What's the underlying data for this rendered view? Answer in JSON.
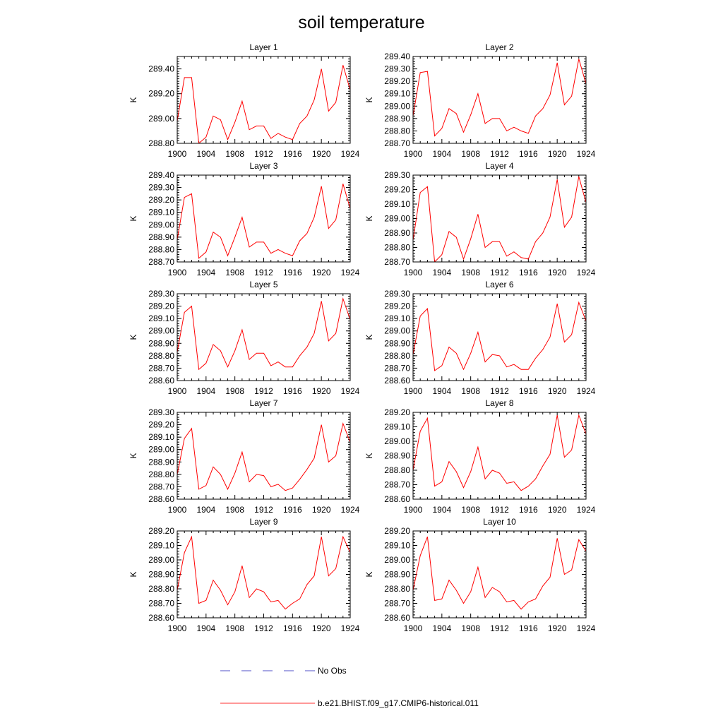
{
  "title": "soil temperature",
  "legend": {
    "items": [
      {
        "label": "No Obs",
        "color": "#5050c8",
        "style": "dashed"
      },
      {
        "label": "b.e21.BHIST.f09_g17.CMIP6-historical.011",
        "color": "#ff3030",
        "style": "solid"
      }
    ]
  },
  "chart_data": [
    {
      "type": "line",
      "title": "Layer 1",
      "xlabel": "",
      "ylabel": "K",
      "xlim": [
        1900,
        1924
      ],
      "ylim": [
        288.8,
        289.5
      ],
      "x_ticks": [
        "1900",
        "1904",
        "1908",
        "1912",
        "1916",
        "1920",
        "1924"
      ],
      "y_ticks": [
        "288.80",
        "289.00",
        "289.20",
        "289.40"
      ],
      "series": [
        {
          "color": "#ff0000",
          "x": [
            1900,
            1901,
            1902,
            1903,
            1904,
            1905,
            1906,
            1907,
            1908,
            1909,
            1910,
            1911,
            1912,
            1913,
            1914,
            1915,
            1916,
            1917,
            1918,
            1919,
            1920,
            1921,
            1922,
            1923,
            1924
          ],
          "values": [
            288.98,
            289.33,
            289.33,
            288.8,
            288.85,
            289.02,
            288.99,
            288.83,
            288.97,
            289.14,
            288.91,
            288.94,
            288.94,
            288.84,
            288.88,
            288.85,
            288.83,
            288.96,
            289.02,
            289.15,
            289.4,
            289.06,
            289.13,
            289.43,
            289.23
          ]
        }
      ]
    },
    {
      "type": "line",
      "title": "Layer 2",
      "xlabel": "",
      "ylabel": "K",
      "xlim": [
        1900,
        1924
      ],
      "ylim": [
        288.7,
        289.4
      ],
      "x_ticks": [
        "1900",
        "1904",
        "1908",
        "1912",
        "1916",
        "1920",
        "1924"
      ],
      "y_ticks": [
        "288.70",
        "288.80",
        "288.90",
        "289.00",
        "289.10",
        "289.20",
        "289.30",
        "289.40"
      ],
      "series": [
        {
          "color": "#ff0000",
          "x": [
            1900,
            1901,
            1902,
            1903,
            1904,
            1905,
            1906,
            1907,
            1908,
            1909,
            1910,
            1911,
            1912,
            1913,
            1914,
            1915,
            1916,
            1917,
            1918,
            1919,
            1920,
            1921,
            1922,
            1923,
            1924
          ],
          "values": [
            288.92,
            289.27,
            289.28,
            288.76,
            288.82,
            288.98,
            288.94,
            288.79,
            288.93,
            289.1,
            288.86,
            288.9,
            288.9,
            288.8,
            288.83,
            288.8,
            288.78,
            288.92,
            288.98,
            289.09,
            289.35,
            289.01,
            289.08,
            289.38,
            289.18
          ]
        }
      ]
    },
    {
      "type": "line",
      "title": "Layer 3",
      "xlabel": "",
      "ylabel": "K",
      "xlim": [
        1900,
        1924
      ],
      "ylim": [
        288.7,
        289.4
      ],
      "x_ticks": [
        "1900",
        "1904",
        "1908",
        "1912",
        "1916",
        "1920",
        "1924"
      ],
      "y_ticks": [
        "288.70",
        "288.80",
        "288.90",
        "289.00",
        "289.10",
        "289.20",
        "289.30",
        "289.40"
      ],
      "series": [
        {
          "color": "#ff0000",
          "x": [
            1900,
            1901,
            1902,
            1903,
            1904,
            1905,
            1906,
            1907,
            1908,
            1909,
            1910,
            1911,
            1912,
            1913,
            1914,
            1915,
            1916,
            1917,
            1918,
            1919,
            1920,
            1921,
            1922,
            1923,
            1924
          ],
          "values": [
            288.88,
            289.22,
            289.25,
            288.73,
            288.78,
            288.94,
            288.9,
            288.75,
            288.9,
            289.06,
            288.82,
            288.86,
            288.86,
            288.77,
            288.8,
            288.77,
            288.75,
            288.87,
            288.93,
            289.06,
            289.31,
            288.97,
            289.04,
            289.33,
            289.13
          ]
        }
      ]
    },
    {
      "type": "line",
      "title": "Layer 4",
      "xlabel": "",
      "ylabel": "K",
      "xlim": [
        1900,
        1924
      ],
      "ylim": [
        288.7,
        289.3
      ],
      "x_ticks": [
        "1900",
        "1904",
        "1908",
        "1912",
        "1916",
        "1920",
        "1924"
      ],
      "y_ticks": [
        "288.70",
        "288.80",
        "288.90",
        "289.00",
        "289.10",
        "289.20",
        "289.30"
      ],
      "series": [
        {
          "color": "#ff0000",
          "x": [
            1900,
            1901,
            1902,
            1903,
            1904,
            1905,
            1906,
            1907,
            1908,
            1909,
            1910,
            1911,
            1912,
            1913,
            1914,
            1915,
            1916,
            1917,
            1918,
            1919,
            1920,
            1921,
            1922,
            1923,
            1924
          ],
          "values": [
            288.85,
            289.18,
            289.22,
            288.7,
            288.75,
            288.91,
            288.87,
            288.72,
            288.86,
            289.03,
            288.8,
            288.84,
            288.84,
            288.74,
            288.77,
            288.73,
            288.72,
            288.84,
            288.9,
            289.01,
            289.27,
            288.94,
            289.01,
            289.29,
            289.11
          ]
        }
      ]
    },
    {
      "type": "line",
      "title": "Layer 5",
      "xlabel": "",
      "ylabel": "K",
      "xlim": [
        1900,
        1924
      ],
      "ylim": [
        288.6,
        289.3
      ],
      "x_ticks": [
        "1900",
        "1904",
        "1908",
        "1912",
        "1916",
        "1920",
        "1924"
      ],
      "y_ticks": [
        "288.60",
        "288.70",
        "288.80",
        "288.90",
        "289.00",
        "289.10",
        "289.20",
        "289.30"
      ],
      "series": [
        {
          "color": "#ff0000",
          "x": [
            1900,
            1901,
            1902,
            1903,
            1904,
            1905,
            1906,
            1907,
            1908,
            1909,
            1910,
            1911,
            1912,
            1913,
            1914,
            1915,
            1916,
            1917,
            1918,
            1919,
            1920,
            1921,
            1922,
            1923,
            1924
          ],
          "values": [
            288.83,
            289.15,
            289.2,
            288.69,
            288.74,
            288.89,
            288.84,
            288.71,
            288.84,
            289.01,
            288.77,
            288.82,
            288.82,
            288.72,
            288.75,
            288.71,
            288.71,
            288.8,
            288.87,
            288.98,
            289.24,
            288.92,
            288.98,
            289.26,
            289.09
          ]
        }
      ]
    },
    {
      "type": "line",
      "title": "Layer 6",
      "xlabel": "",
      "ylabel": "K",
      "xlim": [
        1900,
        1924
      ],
      "ylim": [
        288.6,
        289.3
      ],
      "x_ticks": [
        "1900",
        "1904",
        "1908",
        "1912",
        "1916",
        "1920",
        "1924"
      ],
      "y_ticks": [
        "288.60",
        "288.70",
        "288.80",
        "288.90",
        "289.00",
        "289.10",
        "289.20",
        "289.30"
      ],
      "series": [
        {
          "color": "#ff0000",
          "x": [
            1900,
            1901,
            1902,
            1903,
            1904,
            1905,
            1906,
            1907,
            1908,
            1909,
            1910,
            1911,
            1912,
            1913,
            1914,
            1915,
            1916,
            1917,
            1918,
            1919,
            1920,
            1921,
            1922,
            1923,
            1924
          ],
          "values": [
            288.81,
            289.12,
            289.18,
            288.68,
            288.72,
            288.87,
            288.82,
            288.69,
            288.82,
            288.99,
            288.75,
            288.81,
            288.8,
            288.71,
            288.73,
            288.69,
            288.69,
            288.78,
            288.85,
            288.95,
            289.22,
            288.91,
            288.97,
            289.23,
            289.08
          ]
        }
      ]
    },
    {
      "type": "line",
      "title": "Layer 7",
      "xlabel": "",
      "ylabel": "K",
      "xlim": [
        1900,
        1924
      ],
      "ylim": [
        288.6,
        289.3
      ],
      "x_ticks": [
        "1900",
        "1904",
        "1908",
        "1912",
        "1916",
        "1920",
        "1924"
      ],
      "y_ticks": [
        "288.60",
        "288.70",
        "288.80",
        "288.90",
        "289.00",
        "289.10",
        "289.20",
        "289.30"
      ],
      "series": [
        {
          "color": "#ff0000",
          "x": [
            1900,
            1901,
            1902,
            1903,
            1904,
            1905,
            1906,
            1907,
            1908,
            1909,
            1910,
            1911,
            1912,
            1913,
            1914,
            1915,
            1916,
            1917,
            1918,
            1919,
            1920,
            1921,
            1922,
            1923,
            1924
          ],
          "values": [
            288.8,
            289.09,
            289.17,
            288.68,
            288.71,
            288.86,
            288.8,
            288.68,
            288.81,
            288.98,
            288.74,
            288.8,
            288.79,
            288.7,
            288.72,
            288.67,
            288.69,
            288.76,
            288.84,
            288.93,
            289.2,
            288.9,
            288.95,
            289.21,
            289.06
          ]
        }
      ]
    },
    {
      "type": "line",
      "title": "Layer 8",
      "xlabel": "",
      "ylabel": "K",
      "xlim": [
        1900,
        1924
      ],
      "ylim": [
        288.6,
        289.2
      ],
      "x_ticks": [
        "1900",
        "1904",
        "1908",
        "1912",
        "1916",
        "1920",
        "1924"
      ],
      "y_ticks": [
        "288.60",
        "288.70",
        "288.80",
        "288.90",
        "289.00",
        "289.10",
        "289.20"
      ],
      "series": [
        {
          "color": "#ff0000",
          "x": [
            1900,
            1901,
            1902,
            1903,
            1904,
            1905,
            1906,
            1907,
            1908,
            1909,
            1910,
            1911,
            1912,
            1913,
            1914,
            1915,
            1916,
            1917,
            1918,
            1919,
            1920,
            1921,
            1922,
            1923,
            1924
          ],
          "values": [
            288.8,
            289.07,
            289.16,
            288.69,
            288.72,
            288.86,
            288.79,
            288.68,
            288.79,
            288.96,
            288.74,
            288.8,
            288.78,
            288.71,
            288.72,
            288.66,
            288.69,
            288.74,
            288.83,
            288.91,
            289.18,
            288.89,
            288.94,
            289.18,
            289.05
          ]
        }
      ]
    },
    {
      "type": "line",
      "title": "Layer 9",
      "xlabel": "",
      "ylabel": "K",
      "xlim": [
        1900,
        1924
      ],
      "ylim": [
        288.6,
        289.2
      ],
      "x_ticks": [
        "1900",
        "1904",
        "1908",
        "1912",
        "1916",
        "1920",
        "1924"
      ],
      "y_ticks": [
        "288.60",
        "288.70",
        "288.80",
        "288.90",
        "289.00",
        "289.10",
        "289.20"
      ],
      "series": [
        {
          "color": "#ff0000",
          "x": [
            1900,
            1901,
            1902,
            1903,
            1904,
            1905,
            1906,
            1907,
            1908,
            1909,
            1910,
            1911,
            1912,
            1913,
            1914,
            1915,
            1916,
            1917,
            1918,
            1919,
            1920,
            1921,
            1922,
            1923,
            1924
          ],
          "values": [
            288.79,
            289.05,
            289.16,
            288.7,
            288.72,
            288.86,
            288.79,
            288.69,
            288.78,
            288.96,
            288.74,
            288.8,
            288.78,
            288.71,
            288.72,
            288.66,
            288.7,
            288.73,
            288.83,
            288.89,
            289.16,
            288.89,
            288.94,
            289.16,
            289.05
          ]
        }
      ]
    },
    {
      "type": "line",
      "title": "Layer 10",
      "xlabel": "",
      "ylabel": "K",
      "xlim": [
        1900,
        1924
      ],
      "ylim": [
        288.6,
        289.2
      ],
      "x_ticks": [
        "1900",
        "1904",
        "1908",
        "1912",
        "1916",
        "1920",
        "1924"
      ],
      "y_ticks": [
        "288.60",
        "288.70",
        "288.80",
        "288.90",
        "289.00",
        "289.10",
        "289.20"
      ],
      "series": [
        {
          "color": "#ff0000",
          "x": [
            1900,
            1901,
            1902,
            1903,
            1904,
            1905,
            1906,
            1907,
            1908,
            1909,
            1910,
            1911,
            1912,
            1913,
            1914,
            1915,
            1916,
            1917,
            1918,
            1919,
            1920,
            1921,
            1922,
            1923,
            1924
          ],
          "values": [
            288.79,
            289.03,
            289.16,
            288.72,
            288.73,
            288.86,
            288.79,
            288.7,
            288.78,
            288.95,
            288.74,
            288.81,
            288.78,
            288.71,
            288.72,
            288.66,
            288.71,
            288.73,
            288.82,
            288.88,
            289.15,
            288.9,
            288.93,
            289.14,
            289.06
          ]
        }
      ]
    }
  ]
}
